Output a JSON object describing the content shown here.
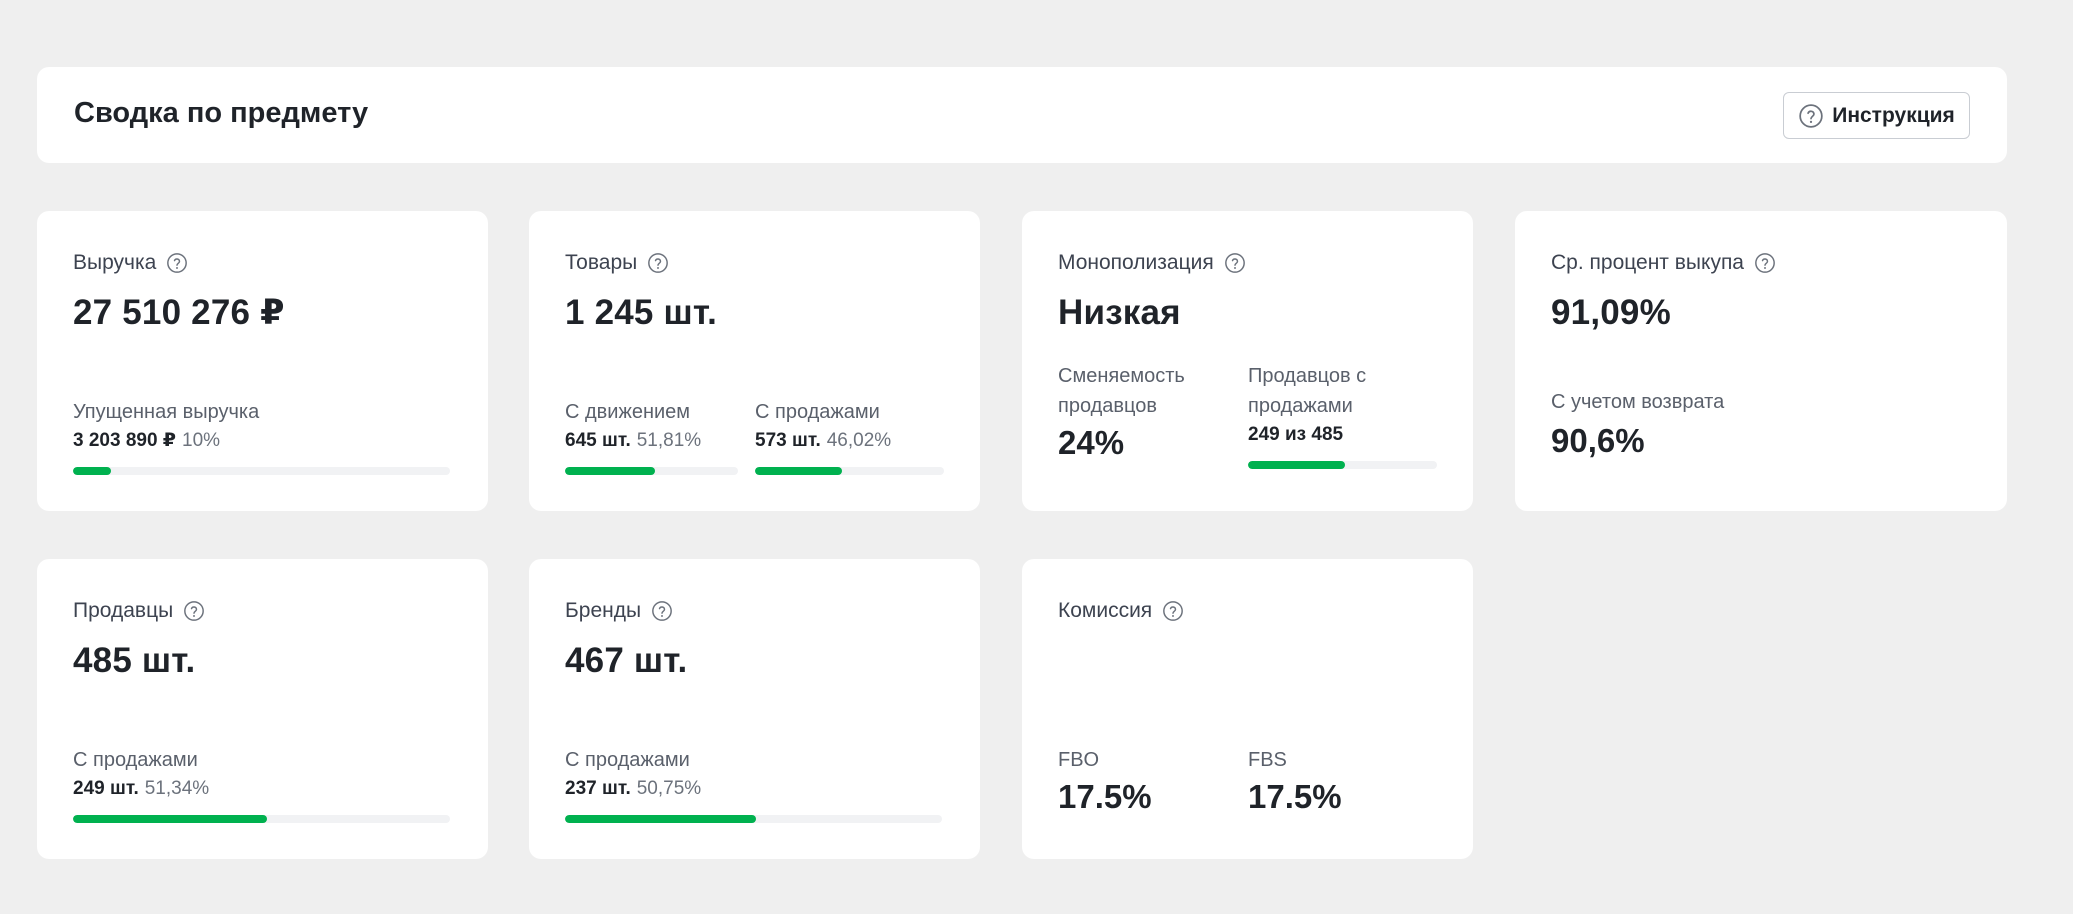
{
  "header": {
    "title": "Сводка по предмету",
    "instruction_label": "Инструкция"
  },
  "cards": {
    "revenue": {
      "label": "Выручка",
      "value": "27 510 276 ₽",
      "lost_label": "Упущенная выручка",
      "lost_value": "3 203 890 ₽",
      "lost_pct": "10%",
      "lost_fraction": 0.1
    },
    "goods": {
      "label": "Товары",
      "value": "1 245 шт.",
      "moving_label": "С движением",
      "moving_value": "645 шт.",
      "moving_pct": "51,81%",
      "moving_fraction": 0.5181,
      "selling_label": "С продажами",
      "selling_value": "573 шт.",
      "selling_pct": "46,02%",
      "selling_fraction": 0.4602
    },
    "monopoly": {
      "label": "Монополизация",
      "value": "Низкая",
      "turnover_label": "Сменяемость продавцов",
      "turnover_value": "24%",
      "sellers_label": "Продавцов с продажами",
      "sellers_value": "249 из 485",
      "sellers_fraction": 0.5134
    },
    "buyout": {
      "label": "Ср. процент выкупа",
      "value": "91,09%",
      "return_label": "С учетом возврата",
      "return_value": "90,6%"
    },
    "sellers": {
      "label": "Продавцы",
      "value": "485 шт.",
      "sub_label": "С продажами",
      "sub_value": "249 шт.",
      "sub_pct": "51,34%",
      "sub_fraction": 0.5134
    },
    "brands": {
      "label": "Бренды",
      "value": "467 шт.",
      "sub_label": "С продажами",
      "sub_value": "237 шт.",
      "sub_pct": "50,75%",
      "sub_fraction": 0.5075
    },
    "commission": {
      "label": "Комиссия",
      "fbo_label": "FBO",
      "fbo_value": "17.5%",
      "fbs_label": "FBS",
      "fbs_value": "17.5%"
    }
  },
  "colors": {
    "accent": "#00b14f",
    "background": "#efefef",
    "card": "#ffffff"
  },
  "icons": {
    "help": "question-circle-icon"
  }
}
